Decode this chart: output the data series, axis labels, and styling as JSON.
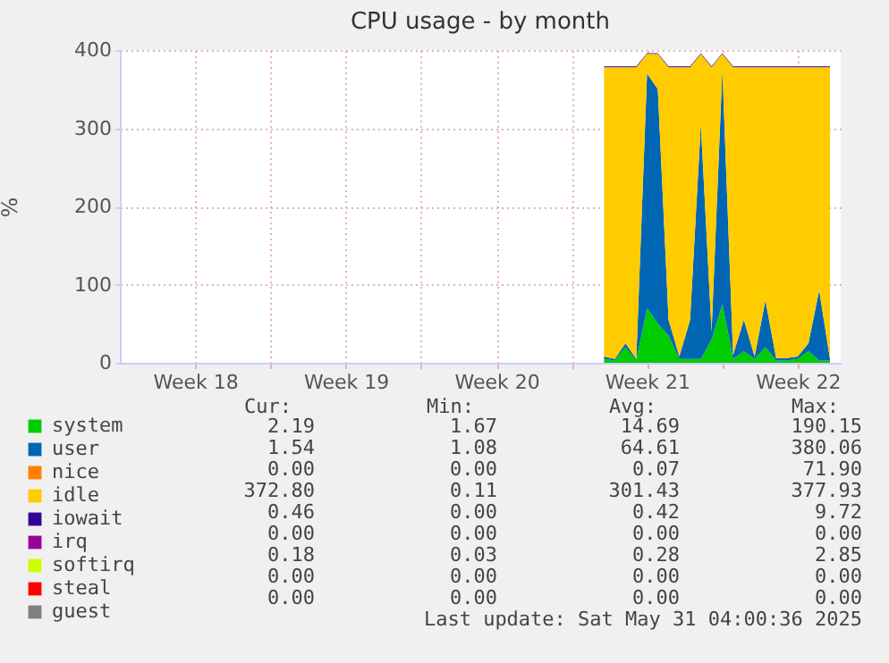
{
  "chart_data": {
    "type": "area",
    "stacked": true,
    "title": "CPU usage - by month",
    "ylabel": "%",
    "ylim": [
      0,
      400
    ],
    "yticks": [
      0,
      100,
      200,
      300,
      400
    ],
    "categories": [
      null,
      null,
      null,
      null,
      null,
      null,
      null,
      "Week 18",
      null,
      null,
      null,
      null,
      null,
      null,
      null,
      null,
      null,
      null,
      null,
      null,
      null,
      "Week 19",
      null,
      null,
      null,
      null,
      null,
      null,
      null,
      null,
      null,
      null,
      null,
      null,
      null,
      "Week 20",
      null,
      null,
      null,
      null,
      null,
      null,
      null,
      null,
      null,
      null,
      null,
      null,
      null,
      "Week 21",
      null,
      null,
      null,
      null,
      null,
      null,
      null,
      null,
      null,
      null,
      null,
      null,
      null,
      "Week 22",
      null,
      null,
      null,
      null
    ],
    "grid": true,
    "legend": "bottom left",
    "series": [
      {
        "name": "system",
        "color": "#00cc00",
        "values": [
          null,
          null,
          null,
          null,
          null,
          null,
          null,
          null,
          null,
          null,
          null,
          null,
          null,
          null,
          null,
          null,
          null,
          null,
          null,
          null,
          null,
          null,
          null,
          null,
          null,
          null,
          null,
          null,
          null,
          null,
          null,
          null,
          null,
          null,
          null,
          null,
          null,
          null,
          null,
          null,
          null,
          null,
          null,
          null,
          null,
          5,
          3,
          20,
          3,
          70,
          50,
          35,
          5,
          5,
          5,
          30,
          75,
          5,
          15,
          5,
          20,
          3,
          3,
          5,
          15,
          3,
          3,
          null
        ]
      },
      {
        "name": "user",
        "color": "#0066b3",
        "values": [
          null,
          null,
          null,
          null,
          null,
          null,
          null,
          null,
          null,
          null,
          null,
          null,
          null,
          null,
          null,
          null,
          null,
          null,
          null,
          null,
          null,
          null,
          null,
          null,
          null,
          null,
          null,
          null,
          null,
          null,
          null,
          null,
          null,
          null,
          null,
          null,
          null,
          null,
          null,
          null,
          null,
          null,
          null,
          null,
          null,
          3,
          2,
          5,
          2,
          300,
          300,
          20,
          3,
          50,
          300,
          10,
          300,
          5,
          40,
          3,
          60,
          3,
          3,
          3,
          10,
          90,
          2,
          null
        ]
      },
      {
        "name": "nice",
        "color": "#ff8000",
        "values": [
          null,
          null,
          null,
          null,
          null,
          null,
          null,
          null,
          null,
          null,
          null,
          null,
          null,
          null,
          null,
          null,
          null,
          null,
          null,
          null,
          null,
          null,
          null,
          null,
          null,
          null,
          null,
          null,
          null,
          null,
          null,
          null,
          null,
          null,
          null,
          null,
          null,
          null,
          null,
          null,
          null,
          null,
          null,
          null,
          null,
          null,
          null,
          null,
          null,
          null,
          null,
          null,
          null,
          null,
          null,
          null,
          null,
          null,
          null,
          null,
          null,
          null,
          null,
          null,
          null,
          null,
          null,
          null
        ]
      },
      {
        "name": "idle",
        "color": "#ffcc00",
        "values": [
          null,
          null,
          null,
          null,
          null,
          null,
          null,
          null,
          null,
          null,
          null,
          null,
          null,
          null,
          null,
          null,
          null,
          null,
          null,
          null,
          null,
          null,
          null,
          null,
          null,
          null,
          null,
          null,
          null,
          null,
          null,
          null,
          null,
          null,
          null,
          null,
          null,
          null,
          null,
          null,
          null,
          null,
          null,
          null,
          null,
          370,
          373,
          353,
          373,
          25,
          45,
          323,
          370,
          323,
          90,
          338,
          20,
          368,
          323,
          370,
          298,
          372,
          372,
          370,
          353,
          285,
          373,
          null
        ]
      },
      {
        "name": "iowait",
        "color": "#330099",
        "values": [
          null,
          null,
          null,
          null,
          null,
          null,
          null,
          null,
          null,
          null,
          null,
          null,
          null,
          null,
          null,
          null,
          null,
          null,
          null,
          null,
          null,
          null,
          null,
          null,
          null,
          null,
          null,
          null,
          null,
          null,
          null,
          null,
          null,
          null,
          null,
          null,
          null,
          null,
          null,
          null,
          null,
          null,
          null,
          null,
          null,
          1,
          1,
          1,
          1,
          1,
          1,
          1,
          1,
          1,
          1,
          1,
          1,
          1,
          1,
          1,
          1,
          1,
          1,
          1,
          1,
          1,
          1,
          null
        ]
      },
      {
        "name": "irq",
        "color": "#990099",
        "values": [
          null,
          null,
          null,
          null,
          null,
          null,
          null,
          null,
          null,
          null,
          null,
          null,
          null,
          null,
          null,
          null,
          null,
          null,
          null,
          null,
          null,
          null,
          null,
          null,
          null,
          null,
          null,
          null,
          null,
          null,
          null,
          null,
          null,
          null,
          null,
          null,
          null,
          null,
          null,
          null,
          null,
          null,
          null,
          null,
          null,
          null,
          null,
          null,
          null,
          null,
          null,
          null,
          null,
          null,
          null,
          null,
          null,
          null,
          null,
          null,
          null,
          null,
          null,
          null,
          null,
          null,
          null,
          null
        ]
      },
      {
        "name": "softirq",
        "color": "#ccff00",
        "values": [
          null,
          null,
          null,
          null,
          null,
          null,
          null,
          null,
          null,
          null,
          null,
          null,
          null,
          null,
          null,
          null,
          null,
          null,
          null,
          null,
          null,
          null,
          null,
          null,
          null,
          null,
          null,
          null,
          null,
          null,
          null,
          null,
          null,
          null,
          null,
          null,
          null,
          null,
          null,
          null,
          null,
          null,
          null,
          null,
          null,
          null,
          null,
          null,
          null,
          null,
          null,
          null,
          null,
          null,
          null,
          null,
          null,
          null,
          null,
          null,
          null,
          null,
          null,
          null,
          null,
          null,
          null,
          null
        ]
      },
      {
        "name": "steal",
        "color": "#ff0000",
        "values": [
          null,
          null,
          null,
          null,
          null,
          null,
          null,
          null,
          null,
          null,
          null,
          null,
          null,
          null,
          null,
          null,
          null,
          null,
          null,
          null,
          null,
          null,
          null,
          null,
          null,
          null,
          null,
          null,
          null,
          null,
          null,
          null,
          null,
          null,
          null,
          null,
          null,
          null,
          null,
          null,
          null,
          null,
          null,
          null,
          null,
          null,
          null,
          null,
          null,
          null,
          null,
          null,
          null,
          null,
          null,
          null,
          null,
          null,
          null,
          null,
          null,
          null,
          null,
          null,
          null,
          null,
          null,
          null
        ]
      },
      {
        "name": "guest",
        "color": "#808080",
        "values": [
          null,
          null,
          null,
          null,
          null,
          null,
          null,
          null,
          null,
          null,
          null,
          null,
          null,
          null,
          null,
          null,
          null,
          null,
          null,
          null,
          null,
          null,
          null,
          null,
          null,
          null,
          null,
          null,
          null,
          null,
          null,
          null,
          null,
          null,
          null,
          null,
          null,
          null,
          null,
          null,
          null,
          null,
          null,
          null,
          null,
          null,
          null,
          null,
          null,
          null,
          null,
          null,
          null,
          null,
          null,
          null,
          null,
          null,
          null,
          null,
          null,
          null,
          null,
          null,
          null,
          null,
          null,
          null
        ]
      }
    ],
    "annotations": [
      "Cur:",
      "Min:",
      "Avg:",
      "Max:",
      "2.19",
      "1.67",
      "14.69",
      "190.15",
      "1.54",
      "1.08",
      "64.61",
      "380.06",
      "0.00",
      "0.00",
      "0.07",
      "71.90",
      "372.80",
      "0.11",
      "301.43",
      "377.93",
      "0.46",
      "0.00",
      "0.42",
      "9.72",
      "0.00",
      "0.00",
      "0.00",
      "0.00",
      "0.18",
      "0.03",
      "0.28",
      "2.85",
      "0.00",
      "0.00",
      "0.00",
      "0.00",
      "0.00",
      "0.00",
      "0.00",
      "0.00",
      "Last update: Sat May 31 04:00:36 2025"
    ]
  }
}
